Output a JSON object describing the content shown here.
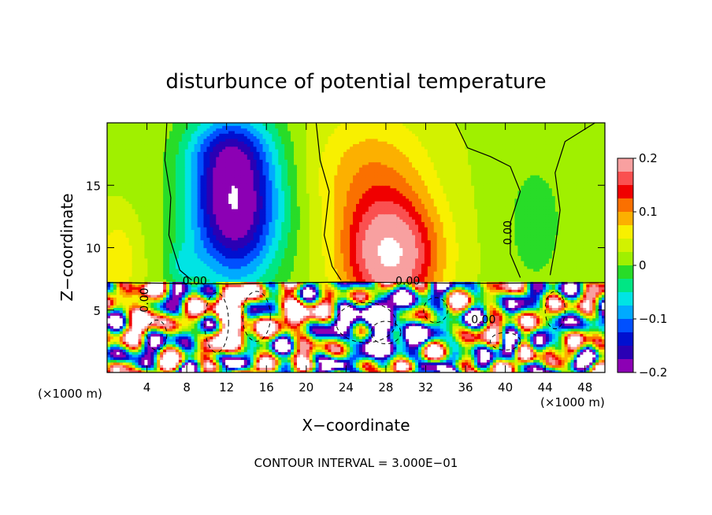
{
  "chart_data": {
    "type": "heatmap",
    "title": "disturbunce of potential temperature",
    "xlabel": "X−coordinate",
    "ylabel": "Z−coordinate",
    "x_unit": "(×1000 m)",
    "y_unit": "(×1000 m)",
    "xlim": [
      0,
      50
    ],
    "ylim": [
      0,
      20
    ],
    "x_ticks": [
      4,
      8,
      12,
      16,
      20,
      24,
      28,
      32,
      36,
      40,
      44,
      48
    ],
    "y_ticks": [
      5,
      10,
      15
    ],
    "x_tick_labels": [
      "4",
      "8",
      "12",
      "16",
      "20",
      "24",
      "28",
      "32",
      "36",
      "40",
      "44",
      "48"
    ],
    "y_tick_labels": [
      "5",
      "10",
      "15"
    ],
    "colorbar": {
      "min": -0.2,
      "max": 0.2,
      "ticks": [
        "0.2",
        "0.1",
        "0",
        "−0.1",
        "−0.2"
      ],
      "colors": [
        "#f8a0a0",
        "#fa5050",
        "#f00000",
        "#fa7000",
        "#fcb000",
        "#f8f000",
        "#d2f200",
        "#a0f000",
        "#28dc28",
        "#00e684",
        "#00e4e4",
        "#00aaff",
        "#0050ff",
        "#0010d0",
        "#2a00b4",
        "#8c00b4"
      ]
    },
    "features": [
      {
        "type": "cold-anomaly",
        "x": 13,
        "z": 13.5,
        "amplitude": -0.2
      },
      {
        "type": "warm-anomaly",
        "x": 28,
        "z": 9.5,
        "amplitude": 0.18
      },
      {
        "type": "weak-cold",
        "x": 43,
        "z": 11,
        "amplitude": -0.02
      },
      {
        "type": "boundary-layer-turbulence",
        "z_top": 7.2
      }
    ],
    "contour_labels": [
      "0.00",
      "0.00",
      "0.00",
      "0.00",
      "0.00"
    ],
    "contour_interval_text": "CONTOUR INTERVAL = 3.000E−01"
  }
}
